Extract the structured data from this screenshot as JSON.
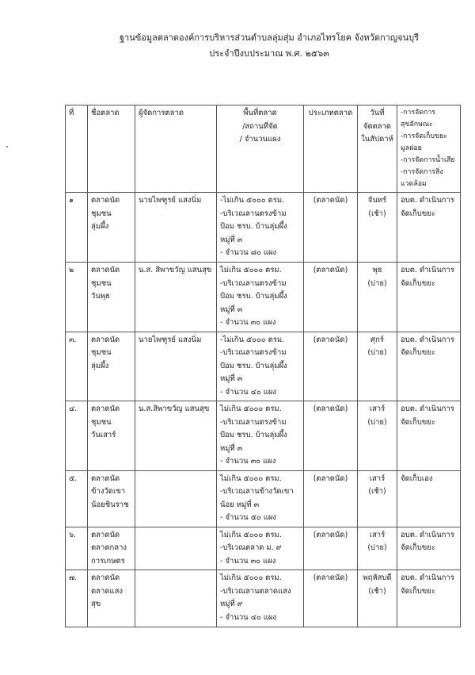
{
  "title": "ฐานข้อมูลตลาดองค์การบริหารส่วนตำบลลุ่มสุ่ม อำเภอไทรโยค  จังหวัดกาญจนบุรี",
  "subtitle": "ประจำปีงบประมาณ พ.ศ. ๒๕๖๓",
  "headers": [
    "ที่",
    "ชื่อตลาด",
    "ผู้จัดการตลาด",
    "พื้นที่ตลาด\n/สถานที่จัด\n/ จำนวนแผง",
    "ประเภทตลาด",
    "วันที่\nจัดตลาด\nในสัปดาห์",
    "-การจัดการสุขลักษณะ\n-การจัดเก็บขยะมูลฝอย\n-การจัดการน้ำเสีย\n-การจัดการสิ่งแวดล้อม"
  ],
  "rows": [
    {
      "no": "๑",
      "name": "ตลาดนัด\nชุมชน\nลุ่มผึ้ง",
      "manager": "นายไพฑูรย์ แสงนิ่ม",
      "area": "-ไม่เกิน ๕๐๐๐ ตรม.\n-บริเวณลานตรงข้าม\nป้อม ชรบ. บ้านลุ่มผึ้ง\nหมู่ที่ ๓\n- จำนวน ๘๐ แผง",
      "type": "(ตลาดนัด)",
      "day": "จันทร์\n(เช้า)",
      "mgmt": "อบต. ดำเนินการ\nจัดเก็บขยะ"
    },
    {
      "no": "๒",
      "name": "ตลาดนัด\nชุมชน\nวันพุธ",
      "manager": "น.ส. สิพาขวัญ  แสนสุข",
      "area": "ไม่เกิน ๕๐๐๐ ตรม.\n-บริเวณลานตรงข้าม\nป้อม ชรบ. บ้านลุ่มผึ้ง\nหมู่ที่ ๓\n- จำนวน ๓๐ แผง",
      "type": "(ตลาดนัด)",
      "day": "พุธ\n(บ่าย)",
      "mgmt": "อบต. ดำเนินการ\nจัดเก็บขยะ"
    },
    {
      "no": "๓.",
      "name": "ตลาดนัด\nชุมชน\nลุ่มผึ้ง",
      "manager": "นายไพฑูรย์ แสงนิ่ม",
      "area": "-ไม่เกิน ๕๐๐๐ ตรม.\n-บริเวณลานตรงข้าม\nป้อม ชรบ. บ้านลุ่มผึ้ง\nหมู่ที่ ๓\n- จำนวน ๔๐ แผง",
      "type": "(ตลาดนัด)",
      "day": "ศุกร์\n(บ่าย)",
      "mgmt": "อบต. ดำเนินการ\nจัดเก็บขยะ"
    },
    {
      "no": "๔.",
      "name": "ตลาดนัด\nชุมชน\nวันเสาร์",
      "manager": "น.ส.สิพาขวัญ  แสนสุข",
      "area": "ไม่เกิน ๕๐๐๐ ตรม.\n-บริเวณลานตรงข้าม\nป้อม ชรบ. บ้านลุ่มผึ้ง\nหมู่ที่ ๓\n- จำนวน ๓๐ แผง",
      "type": "(ตลาดนัด)",
      "day": "เสาร์\n(บ่าย)",
      "mgmt": "อบต. ดำเนินการ\nจัดเก็บขยะ"
    },
    {
      "no": "๕.",
      "name": "ตลาดนัด\nข้างวัดเขา\nน้อยชินราช",
      "manager": "",
      "area": "ไม่เกิน ๕๐๐๐ ตรม.\n-บริเวณลานข้างวัดเขา\nน้อย หมู่ที่ ๓\n- จำนวน ๕๐ แผง",
      "type": "(ตลาดนัด)",
      "day": "เสาร์\n(เช้า)",
      "mgmt": "จัดเก็บเอง"
    },
    {
      "no": "๖.",
      "name": "ตลาดนัด\nตลาดกลาง\nการเกษตร",
      "manager": "",
      "area": "ไม่เกิน ๕๐๐๐ ตรม.\n-บริเวณตลาด ม. ๙\n- จำนวน ๓๐ แผง",
      "type": "(ตลาดนัด)",
      "day": "เสาร์\n(บ่าย)",
      "mgmt": "อบต. ดำเนินการ\nจัดเก็บขยะ"
    },
    {
      "no": "๗.",
      "name": "ตลาดนัด\nตลาดแสงสุข",
      "manager": "",
      "area": "ไม่เกิน ๕๐๐๐ ตรม.\n-บริเวณลานตลาดแสง\nหมู่ที่ ๙\n- จำนวน ๔๐ แผง",
      "type": "(ตลาดนัด)",
      "day": "พฤหัสบดี\n(เช้า)",
      "mgmt": "อบต. ดำเนินการ\nจัดเก็บขยะ"
    }
  ]
}
